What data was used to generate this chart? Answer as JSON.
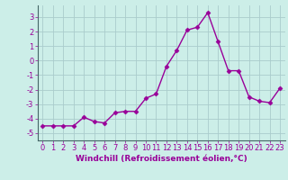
{
  "x": [
    0,
    1,
    2,
    3,
    4,
    5,
    6,
    7,
    8,
    9,
    10,
    11,
    12,
    13,
    14,
    15,
    16,
    17,
    18,
    19,
    20,
    21,
    22,
    23
  ],
  "y": [
    -4.5,
    -4.5,
    -4.5,
    -4.5,
    -3.9,
    -4.2,
    -4.3,
    -3.6,
    -3.5,
    -3.5,
    -2.6,
    -2.3,
    -0.4,
    0.7,
    2.1,
    2.3,
    3.3,
    1.3,
    -0.7,
    -0.7,
    -2.5,
    -2.8,
    -2.9,
    -1.9
  ],
  "line_color": "#990099",
  "marker": "D",
  "markersize": 2.5,
  "linewidth": 1.0,
  "bg_color": "#cceee8",
  "grid_color": "#aacccc",
  "xlabel": "Windchill (Refroidissement éolien,°C)",
  "xlabel_fontsize": 6.5,
  "tick_fontsize": 6,
  "xlim": [
    -0.5,
    23.5
  ],
  "ylim": [
    -5.5,
    3.8
  ],
  "yticks": [
    -5,
    -4,
    -3,
    -2,
    -1,
    0,
    1,
    2,
    3
  ],
  "xticks": [
    0,
    1,
    2,
    3,
    4,
    5,
    6,
    7,
    8,
    9,
    10,
    11,
    12,
    13,
    14,
    15,
    16,
    17,
    18,
    19,
    20,
    21,
    22,
    23
  ],
  "spine_color": "#446666"
}
